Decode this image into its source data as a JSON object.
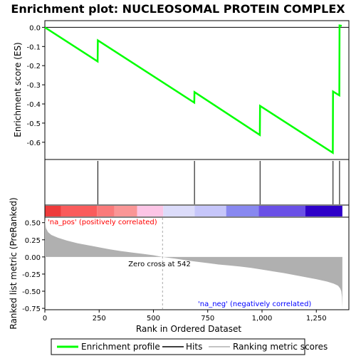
{
  "chart_data": {
    "type": "line",
    "title": "Enrichment plot: NUCLEOSOMAL PROTEIN COMPLEX",
    "es_panel": {
      "ylabel": "Enrichment score (ES)",
      "ylim": [
        -0.69,
        0.035
      ],
      "yticks": [
        0.0,
        -0.1,
        -0.2,
        -0.3,
        -0.4,
        -0.5,
        -0.6
      ],
      "ytick_labels": [
        "0.0",
        "-0.1",
        "-0.2",
        "-0.3",
        "-0.4",
        "-0.5",
        "-0.6"
      ],
      "series": [
        {
          "name": "Enrichment profile",
          "color": "#00ff00",
          "x": [
            0,
            243,
            244,
            688,
            689,
            990,
            991,
            1326,
            1327,
            1356,
            1357,
            1367
          ],
          "y": [
            0.0,
            -0.178,
            -0.068,
            -0.393,
            -0.338,
            -0.562,
            -0.41,
            -0.655,
            -0.335,
            -0.355,
            0.01,
            0.008
          ]
        }
      ]
    },
    "hits": {
      "name": "Hits",
      "positions": [
        244,
        689,
        991,
        1327,
        1357
      ]
    },
    "rank_panel": {
      "ylabel": "Ranked list metric (PreRanked)",
      "xlabel": "Rank in Ordered Dataset",
      "xlim": [
        0,
        1400
      ],
      "xticks": [
        0,
        250,
        500,
        750,
        1000,
        1250
      ],
      "xtick_labels": [
        "0",
        "250",
        "500",
        "750",
        "1,000",
        "1,250"
      ],
      "ylim": [
        -0.77,
        0.58
      ],
      "yticks": [
        0.5,
        0.25,
        0.0,
        -0.25,
        -0.5,
        -0.75
      ],
      "ytick_labels": [
        "0.50",
        "0.25",
        "0.00",
        "-0.25",
        "-0.50",
        "-0.75"
      ],
      "series": [
        {
          "name": "Ranking metric scores",
          "color": "#b0b0b0",
          "x": [
            0,
            5,
            15,
            30,
            60,
            100,
            150,
            200,
            250,
            300,
            350,
            400,
            450,
            500,
            542,
            600,
            650,
            700,
            750,
            800,
            850,
            900,
            950,
            1000,
            1050,
            1100,
            1150,
            1200,
            1250,
            1300,
            1330,
            1350,
            1360,
            1365,
            1368,
            1370
          ],
          "y": [
            0.55,
            0.42,
            0.36,
            0.32,
            0.28,
            0.24,
            0.2,
            0.17,
            0.14,
            0.11,
            0.085,
            0.065,
            0.045,
            0.025,
            0.0,
            -0.025,
            -0.05,
            -0.07,
            -0.09,
            -0.11,
            -0.125,
            -0.14,
            -0.16,
            -0.185,
            -0.21,
            -0.235,
            -0.265,
            -0.295,
            -0.325,
            -0.36,
            -0.39,
            -0.42,
            -0.46,
            -0.5,
            -0.58,
            -0.75
          ]
        }
      ],
      "zero_cross_label": "Zero cross at 542",
      "zero_cross_rank": 542,
      "pos_label": "'na_pos' (positively correlated)",
      "neg_label": "'na_neg' (negatively correlated)",
      "pos_color": "#ff0000",
      "neg_color": "#0000ff"
    },
    "colorbar": {
      "segments": [
        {
          "x0": 0,
          "x1": 75,
          "color": "#ee3b3b"
        },
        {
          "x0": 75,
          "x1": 240,
          "color": "#fa5c5c"
        },
        {
          "x0": 240,
          "x1": 320,
          "color": "#fa7a7a"
        },
        {
          "x0": 320,
          "x1": 425,
          "color": "#fa9696"
        },
        {
          "x0": 425,
          "x1": 545,
          "color": "#fcc5e6"
        },
        {
          "x0": 545,
          "x1": 690,
          "color": "#dcdcfa"
        },
        {
          "x0": 690,
          "x1": 835,
          "color": "#c6c6fa"
        },
        {
          "x0": 835,
          "x1": 985,
          "color": "#8888f0"
        },
        {
          "x0": 985,
          "x1": 1200,
          "color": "#6a50e6"
        },
        {
          "x0": 1200,
          "x1": 1370,
          "color": "#2e00c8"
        }
      ]
    },
    "legend": {
      "items": [
        {
          "label": "Enrichment profile",
          "color": "#00ff00"
        },
        {
          "label": "Hits",
          "color": "#000000"
        },
        {
          "label": "Ranking metric scores",
          "color": "#b0b0b0"
        }
      ]
    }
  }
}
